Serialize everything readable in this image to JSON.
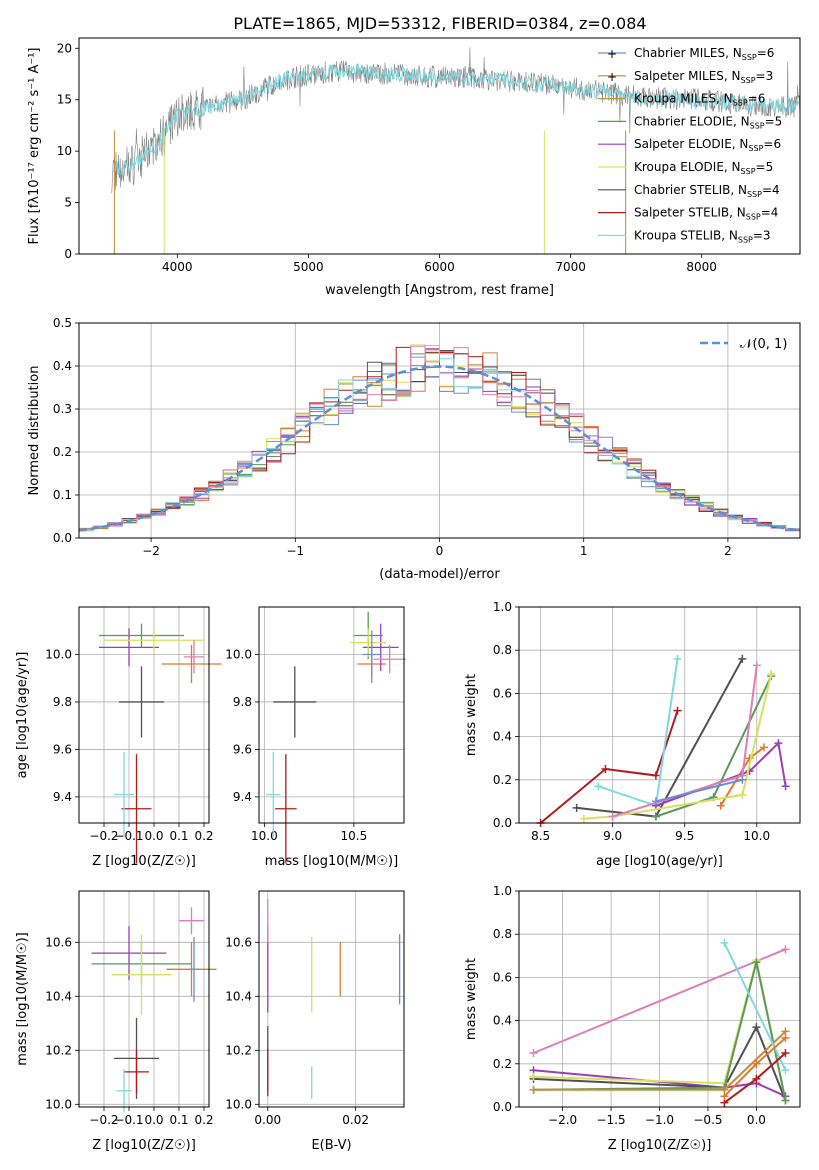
{
  "figure_title": "PLATE=1865, MJD=53312, FIBERID=0384, z=0.084",
  "legend_models": [
    {
      "name": "Chabrier MILES, N",
      "ssp": "SSP",
      "n": "=6",
      "color": "#6a8fd0",
      "marker": "+"
    },
    {
      "name": "Salpeter MILES, N",
      "ssp": "SSP",
      "n": "=3",
      "color": "#e07a30",
      "marker": "+"
    },
    {
      "name": "Kroupa MILES, N",
      "ssp": "SSP",
      "n": "=6",
      "color": "#c98a3a",
      "marker": ""
    },
    {
      "name": "Chabrier ELODIE, N",
      "ssp": "SSP",
      "n": "=5",
      "color": "#5a9a5a",
      "marker": ""
    },
    {
      "name": "Salpeter ELODIE, N",
      "ssp": "SSP",
      "n": "=6",
      "color": "#9b3db8",
      "marker": ""
    },
    {
      "name": "Kroupa ELODIE, N",
      "ssp": "SSP",
      "n": "=5",
      "color": "#d8e060",
      "marker": ""
    },
    {
      "name": "Chabrier STELIB, N",
      "ssp": "SSP",
      "n": "=4",
      "color": "#505050",
      "marker": ""
    },
    {
      "name": "Salpeter STELIB, N",
      "ssp": "SSP",
      "n": "=4",
      "color": "#b01c1c",
      "marker": ""
    },
    {
      "name": "Kroupa STELIB, N",
      "ssp": "SSP",
      "n": "=3",
      "color": "#80d8e0",
      "marker": ""
    }
  ],
  "chart_data": [
    {
      "id": "spectrum",
      "type": "line",
      "xlabel": "wavelength [Angstrom, rest frame]",
      "ylabel": "Flux [fλ10⁻¹⁷ erg cm⁻² s⁻¹ A⁻¹]",
      "xlim": [
        3250,
        8750
      ],
      "ylim": [
        0,
        21
      ],
      "xticks": [
        4000,
        5000,
        6000,
        7000,
        8000
      ],
      "yticks": [
        0,
        5,
        10,
        15,
        20
      ],
      "data_color": "#808080",
      "model_color": "#80d8e0",
      "anchors": [
        [
          3500,
          8.0
        ],
        [
          3700,
          9.0
        ],
        [
          3900,
          11.5
        ],
        [
          4000,
          13.5
        ],
        [
          4200,
          14.2
        ],
        [
          4500,
          15.0
        ],
        [
          4800,
          17.0
        ],
        [
          5200,
          17.8
        ],
        [
          5600,
          17.5
        ],
        [
          6000,
          17.2
        ],
        [
          6400,
          17.0
        ],
        [
          6800,
          16.5
        ],
        [
          7200,
          15.8
        ],
        [
          7600,
          15.2
        ],
        [
          8000,
          15.0
        ],
        [
          8400,
          14.5
        ],
        [
          8750,
          14.3
        ]
      ],
      "model_edges": [
        [
          3520,
          12,
          "#c98a3a"
        ],
        [
          3900,
          12,
          "#d8e060"
        ],
        [
          6800,
          12,
          "#d8e060"
        ],
        [
          7420,
          12,
          "#e07a30"
        ]
      ]
    },
    {
      "id": "residual-histogram",
      "type": "bar",
      "xlabel": "(data-model)/error",
      "ylabel": "Normed distribution",
      "xlim": [
        -2.5,
        2.5
      ],
      "ylim": [
        0,
        0.5
      ],
      "xticks": [
        -2,
        -1,
        0,
        1,
        2
      ],
      "ytick_labels": [
        "0.0",
        "0.1",
        "0.2",
        "0.3",
        "0.4",
        "0.5"
      ],
      "legend_label": "𝒩(0, 1)",
      "normal_color": "#5b8fd6",
      "bin_width": 0.1
    },
    {
      "id": "age-vs-Z",
      "type": "scatter",
      "xlabel": "Z [log10(Z/Z☉)]",
      "ylabel": "age [log10(age/yr)]",
      "xlim": [
        -0.3,
        0.22
      ],
      "ylim": [
        9.29,
        10.2
      ],
      "xtick_labels": [
        "−0.2",
        "−0.1",
        "0.0",
        "0.1",
        "0.2"
      ],
      "ytick_labels": [
        "9.4",
        "9.6",
        "9.8",
        "10.0"
      ],
      "points": [
        {
          "x": -0.05,
          "y": 9.8,
          "xerr": 0.09,
          "yerr": 0.15,
          "color": "#505050"
        },
        {
          "x": -0.07,
          "y": 9.35,
          "xerr": 0.06,
          "yerr": 0.23,
          "color": "#b01c1c"
        },
        {
          "x": -0.12,
          "y": 9.41,
          "xerr": 0.04,
          "yerr": 0.18,
          "color": "#80d8e0"
        },
        {
          "x": 0.15,
          "y": 9.96,
          "xerr": 0.12,
          "yerr": 0.08,
          "color": "#e07a30"
        },
        {
          "x": -0.1,
          "y": 10.03,
          "xerr": 0.12,
          "yerr": 0.08,
          "color": "#9b3db8"
        },
        {
          "x": -0.05,
          "y": 10.08,
          "xerr": 0.17,
          "yerr": 0.05,
          "color": "#5a9a5a"
        },
        {
          "x": 0.0,
          "y": 10.06,
          "xerr": 0.2,
          "yerr": 0.05,
          "color": "#d8e060"
        },
        {
          "x": 0.16,
          "y": 9.99,
          "xerr": 0.04,
          "yerr": 0.07,
          "color": "#e07fb5"
        }
      ]
    },
    {
      "id": "age-vs-mass",
      "type": "scatter",
      "xlabel": "mass [log10(M/M☉)]",
      "xlim": [
        9.97,
        10.78
      ],
      "ylim": [
        9.29,
        10.2
      ],
      "xtick_labels": [
        "10.0",
        "10.5"
      ],
      "ytick_labels": [
        "9.4",
        "9.6",
        "9.8",
        "10.0"
      ],
      "points": [
        {
          "x": 10.17,
          "y": 9.8,
          "xerr": 0.12,
          "yerr": 0.15,
          "color": "#505050"
        },
        {
          "x": 10.12,
          "y": 9.35,
          "xerr": 0.06,
          "yerr": 0.23,
          "color": "#b01c1c"
        },
        {
          "x": 10.05,
          "y": 9.41,
          "xerr": 0.04,
          "yerr": 0.18,
          "color": "#80d8e0"
        },
        {
          "x": 10.6,
          "y": 9.96,
          "xerr": 0.08,
          "yerr": 0.08,
          "color": "#e07a30"
        },
        {
          "x": 10.65,
          "y": 10.03,
          "xerr": 0.1,
          "yerr": 0.1,
          "color": "#9b3db8"
        },
        {
          "x": 10.58,
          "y": 10.08,
          "xerr": 0.08,
          "yerr": 0.1,
          "color": "#5a9a5a"
        },
        {
          "x": 10.58,
          "y": 10.05,
          "xerr": 0.1,
          "yerr": 0.06,
          "color": "#d8e060"
        },
        {
          "x": 10.7,
          "y": 9.98,
          "xerr": 0.09,
          "yerr": 0.06,
          "color": "#e07fb5"
        },
        {
          "x": 10.6,
          "y": 10.0,
          "xerr": 0.05,
          "yerr": 0.1,
          "color": "#6a8fd0"
        }
      ]
    },
    {
      "id": "mass-weight-vs-age",
      "type": "line",
      "xlabel": "age [log10(age/yr)]",
      "ylabel": "mass weight",
      "xlim": [
        8.35,
        10.3
      ],
      "ylim": [
        0,
        1.0
      ],
      "xtick_labels": [
        "8.5",
        "9.0",
        "9.5",
        "10.0"
      ],
      "ytick_labels": [
        "0.0",
        "0.2",
        "0.4",
        "0.6",
        "0.8",
        "1.0"
      ],
      "series": [
        {
          "color": "#b01c1c",
          "x": [
            8.5,
            8.95,
            9.3,
            9.45
          ],
          "y": [
            0.0,
            0.25,
            0.22,
            0.52
          ]
        },
        {
          "color": "#505050",
          "x": [
            8.75,
            9.3,
            9.9
          ],
          "y": [
            0.07,
            0.03,
            0.76
          ]
        },
        {
          "color": "#80d8e0",
          "x": [
            8.9,
            9.3,
            9.45
          ],
          "y": [
            0.17,
            0.08,
            0.76
          ]
        },
        {
          "color": "#e07a30",
          "x": [
            9.75,
            9.95,
            10.05
          ],
          "y": [
            0.08,
            0.3,
            0.35
          ]
        },
        {
          "color": "#9b3db8",
          "x": [
            9.3,
            9.95,
            10.15,
            10.2
          ],
          "y": [
            0.08,
            0.24,
            0.37,
            0.17
          ]
        },
        {
          "color": "#5a9a5a",
          "x": [
            9.3,
            9.7,
            10.1
          ],
          "y": [
            0.03,
            0.12,
            0.68
          ]
        },
        {
          "color": "#d8e060",
          "x": [
            8.8,
            9.0,
            9.9,
            10.1
          ],
          "y": [
            0.02,
            0.03,
            0.13,
            0.69
          ]
        },
        {
          "color": "#e07fb5",
          "x": [
            9.0,
            9.9,
            10.0
          ],
          "y": [
            0.03,
            0.22,
            0.73
          ]
        },
        {
          "color": "#6a8fd0",
          "x": [
            9.3,
            9.9
          ],
          "y": [
            0.1,
            0.2
          ]
        }
      ]
    },
    {
      "id": "mass-vs-Z",
      "type": "scatter",
      "xlabel": "Z [log10(Z/Z☉)]",
      "ylabel": "mass [log10(M/M☉)]",
      "xlim": [
        -0.3,
        0.22
      ],
      "ylim": [
        9.99,
        10.79
      ],
      "xtick_labels": [
        "−0.2",
        "−0.1",
        "0.0",
        "0.1",
        "0.2"
      ],
      "ytick_labels": [
        "10.0",
        "10.2",
        "10.4",
        "10.6"
      ],
      "points": [
        {
          "x": -0.07,
          "y": 10.17,
          "xerr": 0.09,
          "yerr": 0.15,
          "color": "#505050"
        },
        {
          "x": -0.07,
          "y": 10.12,
          "xerr": 0.05,
          "yerr": 0.08,
          "color": "#b01c1c"
        },
        {
          "x": -0.12,
          "y": 10.05,
          "xerr": 0.03,
          "yerr": 0.08,
          "color": "#80d8e0"
        },
        {
          "x": 0.15,
          "y": 10.5,
          "xerr": 0.1,
          "yerr": 0.1,
          "color": "#e07a30"
        },
        {
          "x": -0.1,
          "y": 10.56,
          "xerr": 0.15,
          "yerr": 0.1,
          "color": "#9b3db8"
        },
        {
          "x": -0.05,
          "y": 10.52,
          "xerr": 0.2,
          "yerr": 0.08,
          "color": "#5a9a5a"
        },
        {
          "x": -0.05,
          "y": 10.48,
          "xerr": 0.12,
          "yerr": 0.15,
          "color": "#d8e060"
        },
        {
          "x": 0.15,
          "y": 10.68,
          "xerr": 0.05,
          "yerr": 0.05,
          "color": "#e07fb5"
        },
        {
          "x": 0.16,
          "y": 10.5,
          "xerr": 0.02,
          "yerr": 0.12,
          "color": "#6a8fd0"
        }
      ]
    },
    {
      "id": "mass-vs-ebv",
      "type": "scatter",
      "xlabel": "E(B-V)",
      "xlim": [
        -0.002,
        0.031
      ],
      "ylim": [
        9.99,
        10.79
      ],
      "xtick_labels": [
        "0.00",
        "0.02"
      ],
      "ytick_labels": [
        "10.0",
        "10.2",
        "10.4",
        "10.6"
      ],
      "points": [
        {
          "x": 0.0,
          "y": 10.5,
          "yerr": 0.16,
          "color": "#9b3db8"
        },
        {
          "x": 0.0,
          "y": 10.17,
          "yerr": 0.12,
          "color": "#505050"
        },
        {
          "x": 0.0,
          "y": 10.12,
          "yerr": 0.09,
          "color": "#b01c1c"
        },
        {
          "x": 0.0,
          "y": 10.68,
          "yerr": 0.08,
          "color": "#e07fb5"
        },
        {
          "x": 0.01,
          "y": 10.48,
          "yerr": 0.14,
          "color": "#d8e060"
        },
        {
          "x": 0.01,
          "y": 10.08,
          "yerr": 0.06,
          "color": "#80d8e0"
        },
        {
          "x": 0.0165,
          "y": 10.5,
          "yerr": 0.1,
          "color": "#e07a30"
        },
        {
          "x": 0.03,
          "y": 10.5,
          "yerr": 0.13,
          "color": "#6a8fd0"
        }
      ]
    },
    {
      "id": "mass-weight-vs-Z",
      "type": "line",
      "xlabel": "Z [log10(Z/Z☉)]",
      "ylabel": "mass weight",
      "xlim": [
        -2.45,
        0.45
      ],
      "ylim": [
        0,
        1.0
      ],
      "xtick_labels": [
        "−2.0",
        "−1.5",
        "−1.0",
        "−0.5",
        "0.0"
      ],
      "ytick_labels": [
        "0.0",
        "0.2",
        "0.4",
        "0.6",
        "0.8",
        "1.0"
      ],
      "series": [
        {
          "color": "#e07fb5",
          "x": [
            -2.3,
            0.3
          ],
          "y": [
            0.25,
            0.73
          ]
        },
        {
          "color": "#9b3db8",
          "x": [
            -2.3,
            -0.33,
            0.0,
            0.3
          ],
          "y": [
            0.17,
            0.09,
            0.11,
            0.05
          ]
        },
        {
          "color": "#505050",
          "x": [
            -2.3,
            -0.33,
            0.0,
            0.3
          ],
          "y": [
            0.13,
            0.09,
            0.37,
            0.03
          ]
        },
        {
          "color": "#d8e060",
          "x": [
            -2.3,
            -0.33,
            0.0,
            0.3
          ],
          "y": [
            0.14,
            0.11,
            0.68,
            0.03
          ]
        },
        {
          "color": "#5a9a5a",
          "x": [
            -2.3,
            -0.33,
            0.0,
            0.3
          ],
          "y": [
            0.08,
            0.09,
            0.67,
            0.03
          ]
        },
        {
          "color": "#c98a3a",
          "x": [
            -2.3,
            -0.33,
            0.3
          ],
          "y": [
            0.08,
            0.08,
            0.35
          ]
        },
        {
          "color": "#80d8e0",
          "x": [
            -0.33,
            0.3
          ],
          "y": [
            0.76,
            0.17
          ]
        },
        {
          "color": "#b01c1c",
          "x": [
            -0.33,
            0.0,
            0.3
          ],
          "y": [
            0.02,
            0.13,
            0.25
          ]
        },
        {
          "color": "#e07a30",
          "x": [
            -0.33,
            0.0,
            0.3
          ],
          "y": [
            0.05,
            0.2,
            0.32
          ]
        }
      ]
    }
  ]
}
